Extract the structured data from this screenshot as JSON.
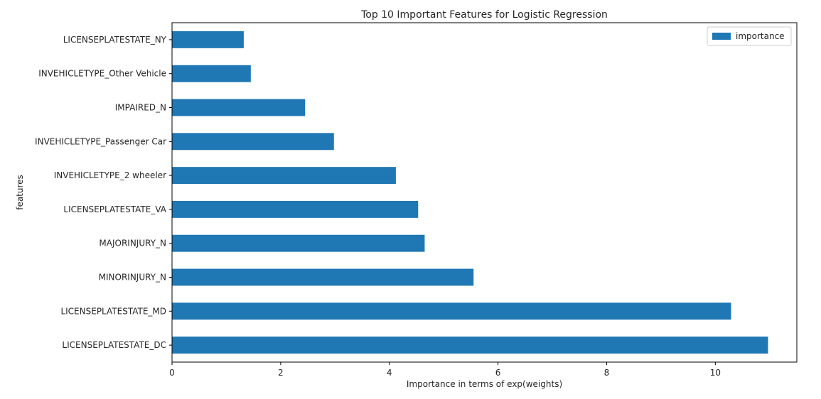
{
  "chart_data": {
    "type": "bar",
    "orientation": "horizontal",
    "title": "Top 10 Important Features for Logistic Regression",
    "xlabel": "Importance in terms of exp(weights)",
    "ylabel": "features",
    "xlim": [
      0,
      11.5
    ],
    "x_ticks": [
      0,
      2,
      4,
      6,
      8,
      10
    ],
    "grid": false,
    "legend": {
      "position": "top-right",
      "entries": [
        "importance"
      ]
    },
    "categories": [
      "LICENSEPLATESTATE_DC",
      "LICENSEPLATESTATE_MD",
      "MINORINJURY_N",
      "MAJORINJURY_N",
      "LICENSEPLATESTATE_VA",
      "INVEHICLETYPE_2 wheeler",
      "INVEHICLETYPE_Passenger Car",
      "IMPAIRED_N",
      "INVEHICLETYPE_Other Vehicle",
      "LICENSEPLATESTATE_NY"
    ],
    "series": [
      {
        "name": "importance",
        "color": "#1f77b4",
        "values": [
          10.97,
          10.29,
          5.55,
          4.65,
          4.53,
          4.12,
          2.98,
          2.45,
          1.45,
          1.32
        ]
      }
    ]
  }
}
